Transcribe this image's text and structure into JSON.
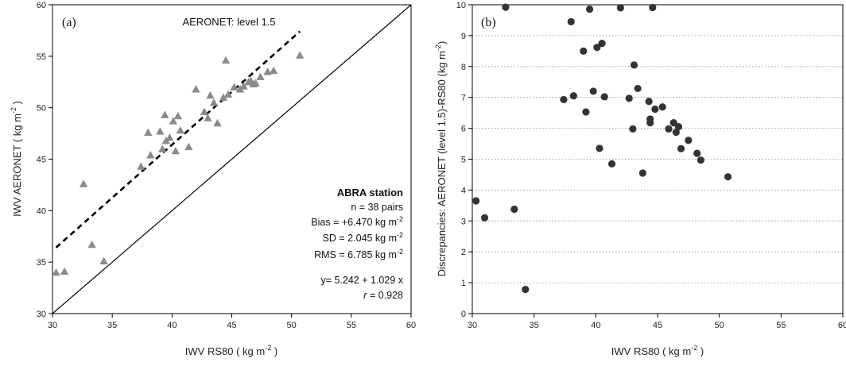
{
  "chart_data": [
    {
      "type": "scatter",
      "panel_label": "(a)",
      "title": "AERONET: level 1.5",
      "xlabel": {
        "main": "IWV RS80 ( kg m",
        "sup": "-2",
        "tail": " )"
      },
      "ylabel": {
        "main": "IWV AERONET ( kg m",
        "sup": "-2",
        "tail": " )"
      },
      "xlim": [
        30,
        60
      ],
      "ylim": [
        30,
        60
      ],
      "xticks": [
        30,
        35,
        40,
        45,
        50,
        55,
        60
      ],
      "yticks": [
        30,
        35,
        40,
        45,
        50,
        55,
        60
      ],
      "grid": false,
      "marker": "triangle",
      "marker_color": "#8a8a8a",
      "fit_line": {
        "intercept": 5.242,
        "slope": 1.029,
        "x_range": [
          30.3,
          50.7
        ],
        "style": "dashed"
      },
      "one_to_one_line": true,
      "series": [
        {
          "x": [
            30.3,
            31.0,
            32.6,
            33.3,
            34.3,
            37.4,
            38.0,
            38.2,
            39.0,
            39.2,
            39.4,
            39.5,
            39.8,
            40.1,
            40.3,
            40.5,
            40.7,
            41.4,
            42.0,
            42.7,
            43.0,
            43.2,
            43.5,
            43.8,
            44.3,
            44.5,
            44.7,
            45.2,
            45.7,
            46.0,
            46.4,
            46.6,
            46.8,
            47.0,
            47.4,
            48.0,
            48.5,
            50.7
          ],
          "y": [
            34.0,
            34.1,
            42.6,
            36.7,
            35.1,
            44.3,
            47.6,
            45.4,
            47.7,
            46.0,
            49.3,
            46.8,
            47.1,
            48.7,
            45.8,
            49.2,
            47.8,
            46.2,
            51.8,
            49.6,
            49.0,
            51.2,
            50.5,
            48.5,
            51.0,
            54.6,
            51.3,
            52.0,
            51.8,
            52.1,
            52.5,
            52.6,
            52.3,
            52.4,
            53.0,
            53.5,
            53.6,
            55.1
          ]
        }
      ],
      "annotations": {
        "station": "ABRA station",
        "n": "n = 38 pairs",
        "bias": {
          "main": "Bias = +6.470 kg m",
          "sup": "-2"
        },
        "sd": {
          "main": "SD = 2.045 kg m",
          "sup": "-2"
        },
        "rms": {
          "main": "RMS = 6.785  kg m",
          "sup": "-2"
        },
        "fit": "y= 5.242 + 1.029 x",
        "r_symbol": "r",
        "r_value": " = 0.928"
      }
    },
    {
      "type": "scatter",
      "panel_label": "(b)",
      "xlabel": {
        "main": "IWV RS80 ( kg m",
        "sup": "-2",
        "tail": " )"
      },
      "ylabel": {
        "main": "Discrepancies: AERONET (level 1.5)-RS80 (kg m",
        "sup": "-2",
        "tail": ")"
      },
      "xlim": [
        30,
        60
      ],
      "ylim": [
        0,
        10
      ],
      "xticks": [
        30,
        35,
        40,
        45,
        50,
        55,
        60
      ],
      "yticks": [
        0,
        1,
        2,
        3,
        4,
        5,
        6,
        7,
        8,
        9,
        10
      ],
      "grid": "horizontal-dotted",
      "marker": "circle",
      "marker_color": "#333333",
      "series": [
        {
          "x": [
            30.3,
            31.0,
            33.4,
            34.3,
            37.4,
            38.0,
            38.2,
            39.0,
            39.2,
            39.5,
            32.7,
            39.8,
            40.1,
            40.3,
            40.5,
            40.7,
            41.3,
            42.0,
            42.7,
            43.0,
            43.1,
            43.4,
            43.8,
            44.3,
            44.4,
            44.4,
            44.6,
            44.8,
            45.4,
            45.9,
            46.3,
            46.5,
            46.7,
            46.9,
            47.5,
            48.2,
            48.5,
            50.7
          ],
          "y": [
            3.65,
            3.1,
            3.38,
            0.78,
            6.93,
            9.45,
            7.05,
            8.5,
            6.53,
            9.86,
            9.92,
            7.2,
            8.62,
            5.35,
            8.75,
            7.02,
            4.85,
            9.9,
            6.97,
            5.98,
            8.05,
            7.29,
            4.55,
            6.87,
            6.3,
            6.18,
            9.91,
            6.62,
            6.69,
            5.98,
            6.18,
            5.87,
            6.05,
            5.34,
            5.61,
            5.19,
            4.97,
            4.43
          ]
        }
      ]
    }
  ]
}
